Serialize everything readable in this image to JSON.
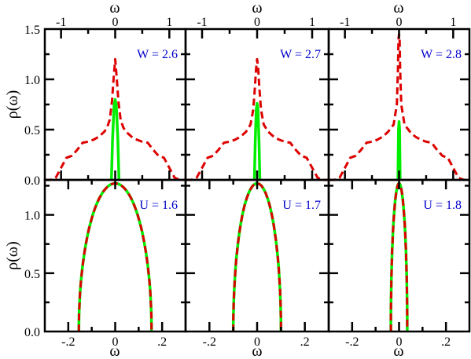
{
  "figure": {
    "top_xlabel": "ω",
    "bottom_xlabel": "ω",
    "colors": {
      "dashed": "#dd0000",
      "solid": "#00ee00",
      "label": "#0000cc",
      "axis": "#000000"
    }
  },
  "chart_data": [
    {
      "type": "line",
      "panel": "top-1",
      "label": "W = 2.6",
      "ylabel": "ρ(ω)",
      "xlim": [
        -1.3,
        1.3
      ],
      "ylim": [
        0,
        1.5
      ],
      "xticks": [
        -1,
        0,
        1
      ],
      "yticks": [
        0,
        0.5,
        1,
        1.5
      ],
      "series": [
        {
          "style": "dashed",
          "color": "#dd0000",
          "x": [
            -1.3,
            -1.2,
            -1.1,
            -1.0,
            -0.9,
            -0.8,
            -0.7,
            -0.6,
            -0.5,
            -0.4,
            -0.3,
            -0.2,
            -0.15,
            -0.1,
            -0.06,
            -0.03,
            0,
            0.03,
            0.06,
            0.1,
            0.15,
            0.2,
            0.3,
            0.4,
            0.5,
            0.6,
            0.7,
            0.8,
            0.9,
            1.0,
            1.1,
            1.2,
            1.3
          ],
          "y": [
            0,
            0,
            0.02,
            0.12,
            0.22,
            0.24,
            0.3,
            0.37,
            0.38,
            0.4,
            0.43,
            0.48,
            0.52,
            0.6,
            0.78,
            1.0,
            1.2,
            1.0,
            0.78,
            0.6,
            0.52,
            0.48,
            0.43,
            0.4,
            0.38,
            0.37,
            0.3,
            0.24,
            0.22,
            0.12,
            0.02,
            0,
            0
          ]
        },
        {
          "style": "solid",
          "color": "#00ee00",
          "x": [
            -0.07,
            -0.05,
            -0.02,
            0,
            0.02,
            0.05,
            0.07
          ],
          "y": [
            0,
            0.4,
            0.74,
            0.8,
            0.74,
            0.4,
            0
          ]
        }
      ]
    },
    {
      "type": "line",
      "panel": "top-2",
      "label": "W = 2.7",
      "xlim": [
        -1.3,
        1.3
      ],
      "ylim": [
        0,
        1.5
      ],
      "xticks": [
        -1,
        0,
        1
      ],
      "yticks": [
        0,
        0.5,
        1,
        1.5
      ],
      "series": [
        {
          "style": "dashed",
          "color": "#dd0000",
          "x": [
            -1.3,
            -1.2,
            -1.1,
            -1.0,
            -0.9,
            -0.8,
            -0.7,
            -0.6,
            -0.5,
            -0.4,
            -0.3,
            -0.2,
            -0.12,
            -0.07,
            -0.04,
            -0.02,
            0,
            0.02,
            0.04,
            0.07,
            0.12,
            0.2,
            0.3,
            0.4,
            0.5,
            0.6,
            0.7,
            0.8,
            0.9,
            1.0,
            1.1,
            1.2,
            1.3
          ],
          "y": [
            0,
            0,
            0.02,
            0.12,
            0.22,
            0.24,
            0.3,
            0.37,
            0.38,
            0.4,
            0.43,
            0.48,
            0.55,
            0.7,
            0.92,
            1.1,
            1.2,
            1.1,
            0.92,
            0.7,
            0.55,
            0.48,
            0.43,
            0.4,
            0.38,
            0.37,
            0.3,
            0.24,
            0.22,
            0.12,
            0.02,
            0,
            0
          ]
        },
        {
          "style": "solid",
          "color": "#00ee00",
          "x": [
            -0.05,
            -0.035,
            -0.015,
            0,
            0.015,
            0.035,
            0.05
          ],
          "y": [
            0,
            0.38,
            0.7,
            0.76,
            0.7,
            0.38,
            0
          ]
        }
      ]
    },
    {
      "type": "line",
      "panel": "top-3",
      "label": "W = 2.8",
      "xlim": [
        -1.3,
        1.3
      ],
      "ylim": [
        0,
        1.5
      ],
      "xticks": [
        -1,
        0,
        1
      ],
      "yticks": [
        0,
        0.5,
        1,
        1.5
      ],
      "series": [
        {
          "style": "dashed",
          "color": "#dd0000",
          "x": [
            -1.3,
            -1.2,
            -1.1,
            -1.0,
            -0.9,
            -0.8,
            -0.7,
            -0.6,
            -0.5,
            -0.4,
            -0.3,
            -0.2,
            -0.1,
            -0.04,
            -0.02,
            -0.01,
            0,
            0.01,
            0.02,
            0.04,
            0.1,
            0.2,
            0.3,
            0.4,
            0.5,
            0.6,
            0.7,
            0.8,
            0.9,
            1.0,
            1.1,
            1.2,
            1.3
          ],
          "y": [
            0,
            0,
            0.02,
            0.12,
            0.22,
            0.24,
            0.3,
            0.37,
            0.38,
            0.4,
            0.43,
            0.48,
            0.55,
            0.75,
            1.1,
            1.4,
            1.45,
            1.4,
            1.1,
            0.75,
            0.55,
            0.48,
            0.43,
            0.4,
            0.38,
            0.37,
            0.3,
            0.24,
            0.22,
            0.12,
            0.02,
            0,
            0
          ]
        },
        {
          "style": "solid",
          "color": "#00ee00",
          "x": [
            -0.02,
            -0.01,
            0,
            0.01,
            0.02
          ],
          "y": [
            0,
            0.5,
            0.58,
            0.5,
            0
          ]
        }
      ]
    },
    {
      "type": "line",
      "panel": "bottom-1",
      "label": "U = 1.6",
      "ylabel": "ρ(ω)",
      "xlim": [
        -0.3,
        0.3
      ],
      "ylim": [
        0,
        1.3
      ],
      "xticks": [
        -0.2,
        0,
        0.2
      ],
      "yticks": [
        0,
        0.5,
        1
      ],
      "semicircle": {
        "half_width": 0.155,
        "peak": 1.27
      },
      "series": [
        {
          "style": "solid",
          "color": "#00ee00"
        },
        {
          "style": "dashed",
          "color": "#dd0000"
        }
      ]
    },
    {
      "type": "line",
      "panel": "bottom-2",
      "label": "U = 1.7",
      "xlim": [
        -0.3,
        0.3
      ],
      "ylim": [
        0,
        1.3
      ],
      "xticks": [
        -0.2,
        0,
        0.2
      ],
      "yticks": [
        0,
        0.5,
        1
      ],
      "semicircle": {
        "half_width": 0.1,
        "peak": 1.27
      },
      "series": [
        {
          "style": "solid",
          "color": "#00ee00"
        },
        {
          "style": "dashed",
          "color": "#dd0000"
        }
      ]
    },
    {
      "type": "line",
      "panel": "bottom-3",
      "label": "U = 1.8",
      "xlim": [
        -0.3,
        0.3
      ],
      "ylim": [
        0,
        1.3
      ],
      "xticks": [
        -0.2,
        0,
        0.2
      ],
      "yticks": [
        0,
        0.5,
        1
      ],
      "semicircle": {
        "half_width": 0.035,
        "peak": 1.27
      },
      "series": [
        {
          "style": "solid",
          "color": "#00ee00"
        },
        {
          "style": "dashed",
          "color": "#dd0000"
        }
      ]
    }
  ]
}
